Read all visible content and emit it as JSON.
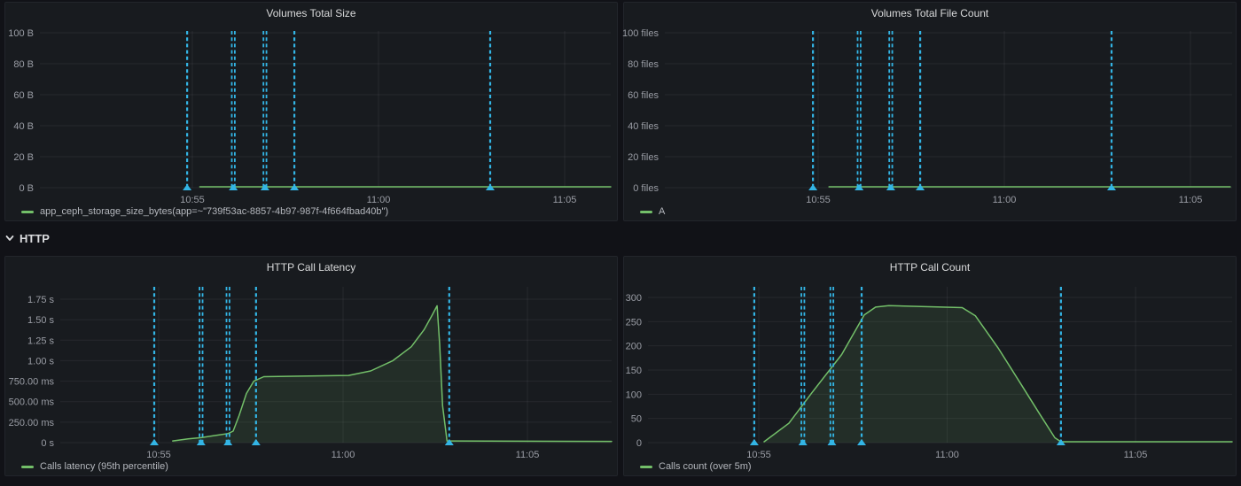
{
  "row_header": {
    "label": "HTTP"
  },
  "colors": {
    "page_bg": "#111217",
    "panel_bg": "#181b1f",
    "panel_border": "#22252b",
    "title_text": "#d8d9da",
    "axis_text": "#9a9da5",
    "grid": "rgba(204,204,220,0.08)",
    "annotation": "#33b5e5",
    "series_green": "#73bf69",
    "series_fill": "rgba(115,191,105,0.12)",
    "legend_text": "#b4b7bd"
  },
  "panels": [
    {
      "title": "Volumes Total Size",
      "legend": "app_ceph_storage_size_bytes(app=~\"739f53ac-8857-4b97-987f-4f664fbad40b\")"
    },
    {
      "title": "Volumes Total File Count",
      "legend": "A"
    },
    {
      "title": "HTTP Call Latency",
      "legend": "Calls latency (95th percentile)"
    },
    {
      "title": "HTTP Call Count",
      "legend": "Calls count (over 5m)"
    }
  ],
  "chart_data": [
    {
      "type": "line",
      "title": "Volumes Total Size",
      "x_unit": "minutes after 10:55",
      "y_ticks": [
        {
          "label": "0 B",
          "value": 0
        },
        {
          "label": "20 B",
          "value": 20
        },
        {
          "label": "40 B",
          "value": 40
        },
        {
          "label": "60 B",
          "value": 60
        },
        {
          "label": "80 B",
          "value": 80
        },
        {
          "label": "100 B",
          "value": 100
        }
      ],
      "x_ticks": [
        {
          "label": "10:55",
          "t": 0
        },
        {
          "label": "11:00",
          "t": 5
        },
        {
          "label": "11:05",
          "t": 10
        }
      ],
      "annotations": [
        {
          "t": -0.14
        },
        {
          "t": 1.1,
          "double": true
        },
        {
          "t": 1.95,
          "double": true
        },
        {
          "t": 2.74
        },
        {
          "t": 8.0
        }
      ],
      "series": [
        {
          "name": "app_ceph_storage_size_bytes(app=~\"739f53ac-8857-4b97-987f-4f664fbad40b\")",
          "points": [
            [
              0.2,
              0
            ],
            [
              11.24,
              0
            ]
          ]
        }
      ]
    },
    {
      "type": "line",
      "title": "Volumes Total File Count",
      "x_unit": "minutes after 10:55",
      "y_ticks": [
        {
          "label": "0 files",
          "value": 0
        },
        {
          "label": "20 files",
          "value": 20
        },
        {
          "label": "40 files",
          "value": 40
        },
        {
          "label": "60 files",
          "value": 60
        },
        {
          "label": "80 files",
          "value": 80
        },
        {
          "label": "100 files",
          "value": 100
        }
      ],
      "x_ticks": [
        {
          "label": "10:55",
          "t": 0
        },
        {
          "label": "11:00",
          "t": 5
        },
        {
          "label": "11:05",
          "t": 10
        }
      ],
      "annotations": [
        {
          "t": -0.14
        },
        {
          "t": 1.1,
          "double": true
        },
        {
          "t": 1.95,
          "double": true
        },
        {
          "t": 2.74
        },
        {
          "t": 7.88
        }
      ],
      "series": [
        {
          "name": "A",
          "points": [
            [
              0.29,
              0
            ],
            [
              11.07,
              0
            ]
          ]
        }
      ]
    },
    {
      "type": "line",
      "title": "HTTP Call Latency",
      "x_unit": "minutes after 10:55",
      "y_unit": "seconds",
      "y_ticks": [
        {
          "label": "0 s",
          "value": 0
        },
        {
          "label": "250.00 ms",
          "value": 0.25
        },
        {
          "label": "500.00 ms",
          "value": 0.5
        },
        {
          "label": "750.00 ms",
          "value": 0.75
        },
        {
          "label": "1.00 s",
          "value": 1.0
        },
        {
          "label": "1.25 s",
          "value": 1.25
        },
        {
          "label": "1.50 s",
          "value": 1.5
        },
        {
          "label": "1.75 s",
          "value": 1.75
        }
      ],
      "x_ticks": [
        {
          "label": "10:55",
          "t": 0
        },
        {
          "label": "11:00",
          "t": 5
        },
        {
          "label": "11:05",
          "t": 10
        }
      ],
      "annotations": [
        {
          "t": -0.12
        },
        {
          "t": 1.15,
          "double": true
        },
        {
          "t": 1.88,
          "double": true
        },
        {
          "t": 2.64
        },
        {
          "t": 7.88
        }
      ],
      "series": [
        {
          "name": "Calls latency (95th percentile)",
          "points": [
            [
              0.38,
              0.02
            ],
            [
              0.8,
              0.045
            ],
            [
              1.15,
              0.06
            ],
            [
              1.5,
              0.085
            ],
            [
              1.88,
              0.11
            ],
            [
              2.02,
              0.14
            ],
            [
              2.18,
              0.33
            ],
            [
              2.38,
              0.6
            ],
            [
              2.58,
              0.75
            ],
            [
              2.85,
              0.805
            ],
            [
              5.15,
              0.82
            ],
            [
              5.75,
              0.875
            ],
            [
              6.35,
              1.0
            ],
            [
              6.85,
              1.17
            ],
            [
              7.2,
              1.38
            ],
            [
              7.42,
              1.56
            ],
            [
              7.55,
              1.67
            ],
            [
              7.62,
              1.2
            ],
            [
              7.7,
              0.45
            ],
            [
              7.82,
              0.02
            ],
            [
              12.3,
              0.015
            ]
          ]
        }
      ]
    },
    {
      "type": "line",
      "title": "HTTP Call Count",
      "x_unit": "minutes after 10:55",
      "y_ticks": [
        {
          "label": "0",
          "value": 0
        },
        {
          "label": "50",
          "value": 50
        },
        {
          "label": "100",
          "value": 100
        },
        {
          "label": "150",
          "value": 150
        },
        {
          "label": "200",
          "value": 200
        },
        {
          "label": "250",
          "value": 250
        },
        {
          "label": "300",
          "value": 300
        }
      ],
      "x_ticks": [
        {
          "label": "10:55",
          "t": 0
        },
        {
          "label": "11:00",
          "t": 5
        },
        {
          "label": "11:05",
          "t": 10
        }
      ],
      "annotations": [
        {
          "t": -0.12
        },
        {
          "t": 1.17,
          "double": true
        },
        {
          "t": 1.94,
          "double": true
        },
        {
          "t": 2.73
        },
        {
          "t": 8.02
        }
      ],
      "series": [
        {
          "name": "Calls count (over 5m)",
          "points": [
            [
              0.14,
              0
            ],
            [
              0.8,
              40
            ],
            [
              1.4,
              102
            ],
            [
              2.2,
              182
            ],
            [
              2.8,
              264
            ],
            [
              3.1,
              280
            ],
            [
              3.45,
              283
            ],
            [
              5.4,
              279
            ],
            [
              5.75,
              262
            ],
            [
              6.35,
              196
            ],
            [
              6.95,
              122
            ],
            [
              7.45,
              60
            ],
            [
              7.86,
              10
            ],
            [
              8.02,
              0
            ],
            [
              12.6,
              0
            ]
          ]
        }
      ]
    }
  ]
}
